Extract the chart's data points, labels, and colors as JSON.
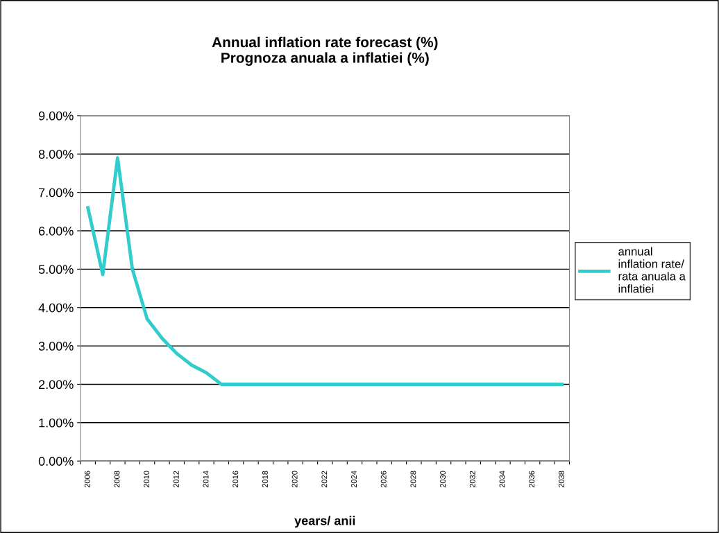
{
  "chart_data": {
    "type": "line",
    "title": "Annual inflation rate forecast (%)\nPrognoza anuala a inflatiei (%)",
    "xlabel": "years/ anii",
    "categories": [
      "2006",
      null,
      "2008",
      null,
      "2010",
      null,
      "2012",
      null,
      "2014",
      null,
      "2016",
      null,
      "2018",
      null,
      "2020",
      null,
      "2022",
      null,
      "2024",
      null,
      "2026",
      null,
      "2028",
      null,
      "2030",
      null,
      "2032",
      null,
      "2034",
      null,
      "2036",
      null,
      "2038"
    ],
    "series": [
      {
        "name": "annual\ninflation rate/\nrata anuala a\ninflatiei",
        "color": "#33cccc",
        "values": [
          6.6,
          4.86,
          7.9,
          5.0,
          3.7,
          3.2,
          2.8,
          2.5,
          2.3,
          2.0,
          2.0,
          2.0,
          2.0,
          2.0,
          2.0,
          2.0,
          2.0,
          2.0,
          2.0,
          2.0,
          2.0,
          2.0,
          2.0,
          2.0,
          2.0,
          2.0,
          2.0,
          2.0,
          2.0,
          2.0,
          2.0,
          2.0,
          2.0
        ]
      }
    ],
    "ylim": [
      0,
      9
    ],
    "yticks": [
      {
        "value": 0,
        "label": "0.00%"
      },
      {
        "value": 1,
        "label": "1.00%"
      },
      {
        "value": 2,
        "label": "2.00%"
      },
      {
        "value": 3,
        "label": "3.00%"
      },
      {
        "value": 4,
        "label": "4.00%"
      },
      {
        "value": 5,
        "label": "5.00%"
      },
      {
        "value": 6,
        "label": "6.00%"
      },
      {
        "value": 7,
        "label": "7.00%"
      },
      {
        "value": 8,
        "label": "8.00%"
      },
      {
        "value": 9,
        "label": "9.00%"
      }
    ],
    "grid": "y",
    "legend": "right",
    "marker": "none",
    "line_style": "solid"
  }
}
